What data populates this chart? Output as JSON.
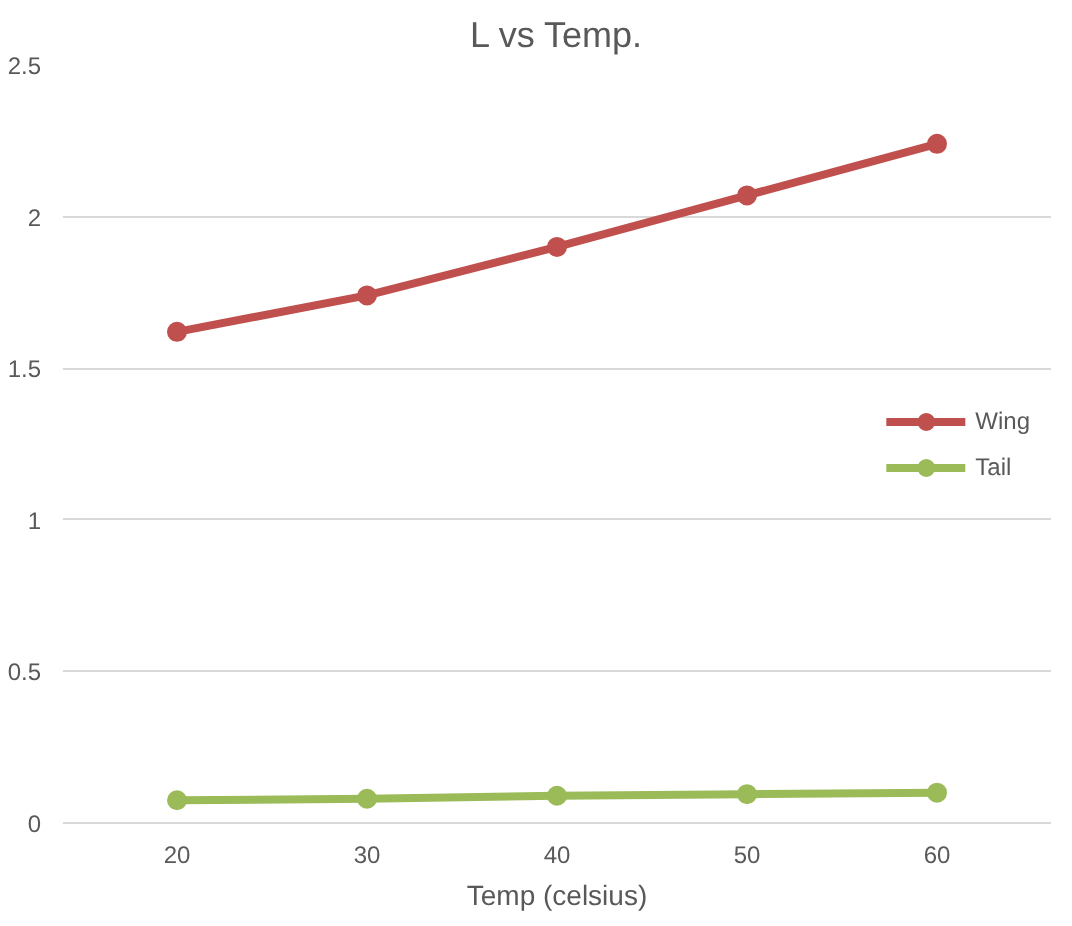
{
  "chart_data": {
    "type": "line",
    "title": "L vs Temp.",
    "xlabel": "Temp (celsius)",
    "categories": [
      "20",
      "30",
      "40",
      "50",
      "60"
    ],
    "series": [
      {
        "name": "Wing",
        "color": "#c0504d",
        "values": [
          1.62,
          1.74,
          1.9,
          2.07,
          2.24
        ]
      },
      {
        "name": "Tail",
        "color": "#9bbb59",
        "values": [
          0.075,
          0.08,
          0.09,
          0.095,
          0.1
        ]
      }
    ],
    "ylim": [
      0,
      2.5
    ],
    "yticks": [
      0,
      0.5,
      1,
      1.5,
      2,
      2.5
    ],
    "grid": "y",
    "legend": "right",
    "marker": "circle",
    "line_style": "solid"
  }
}
